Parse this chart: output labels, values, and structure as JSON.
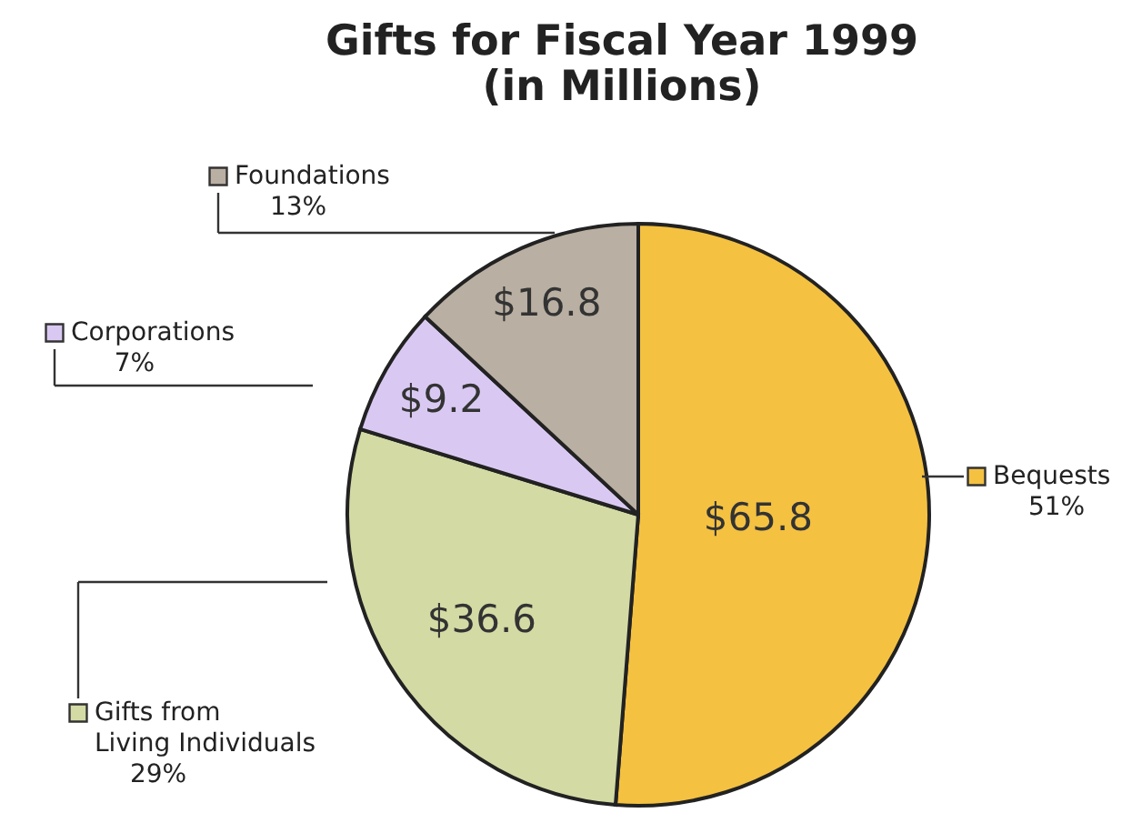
{
  "chart_data": {
    "type": "pie",
    "title": "Gifts for Fiscal Year 1999",
    "subtitle": "(in Millions)",
    "categories": [
      "Bequests",
      "Gifts from\nLiving Individuals",
      "Corporations",
      "Foundations"
    ],
    "values": [
      65.8,
      36.6,
      9.2,
      16.8
    ],
    "value_labels": [
      "$65.8",
      "$36.6",
      "$9.2",
      "$16.8"
    ],
    "colors": [
      "#f4c141",
      "#d3daa4",
      "#d9c9f2",
      "#b9afa2"
    ],
    "annotations": [
      "51%",
      "29%",
      "7%",
      "13%"
    ],
    "legend": "left"
  }
}
